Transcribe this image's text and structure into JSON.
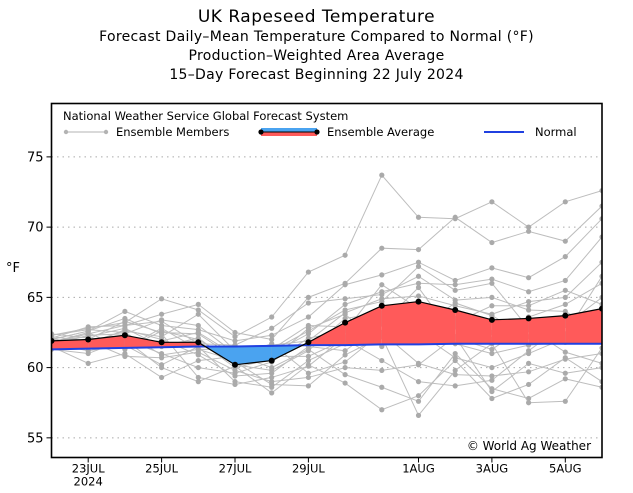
{
  "chart_data": {
    "type": "line",
    "title": "UK Rapeseed Temperature",
    "subtitles": [
      "Forecast Daily–Mean Temperature Compared to Normal (°F)",
      "Production–Weighted Area Average",
      "15–Day Forecast Beginning 22 July 2024"
    ],
    "xlabel": "",
    "ylabel": "°F",
    "ylim": [
      53.6,
      78.8
    ],
    "yticks": [
      55,
      60,
      65,
      70,
      75
    ],
    "grid": "horizontal-dotted",
    "x": [
      "22JUL",
      "23JUL",
      "24JUL",
      "25JUL",
      "26JUL",
      "27JUL",
      "28JUL",
      "29JUL",
      "30JUL",
      "31JUL",
      "1AUG",
      "2AUG",
      "3AUG",
      "4AUG",
      "5AUG",
      "6AUG"
    ],
    "xticks": [
      {
        "index": 1,
        "label": "23JUL",
        "sublabel": "2024"
      },
      {
        "index": 3,
        "label": "25JUL",
        "sublabel": ""
      },
      {
        "index": 5,
        "label": "27JUL",
        "sublabel": ""
      },
      {
        "index": 7,
        "label": "29JUL",
        "sublabel": ""
      },
      {
        "index": 10,
        "label": "1AUG",
        "sublabel": ""
      },
      {
        "index": 12,
        "label": "3AUG",
        "sublabel": ""
      },
      {
        "index": 14,
        "label": "5AUG",
        "sublabel": ""
      }
    ],
    "legend": {
      "header": "National Weather Service Global Forecast System",
      "position": "top",
      "entries": [
        {
          "name": "Ensemble Members",
          "color": "#b3b3b3"
        },
        {
          "name": "Ensemble Average",
          "color": "#000000",
          "above_color": "#ff5a5a",
          "below_color": "#4aa3f0"
        },
        {
          "name": "Normal",
          "color": "#2040e0"
        }
      ]
    },
    "annotation": "© World Ag Weather",
    "series": [
      {
        "name": "Ensemble Average",
        "values": [
          61.9,
          62.0,
          62.3,
          61.8,
          61.8,
          60.2,
          60.5,
          61.8,
          63.2,
          64.4,
          64.7,
          64.1,
          63.4,
          63.5,
          63.7,
          64.2
        ]
      },
      {
        "name": "Normal",
        "values": [
          61.3,
          61.35,
          61.4,
          61.45,
          61.5,
          61.5,
          61.55,
          61.6,
          61.6,
          61.65,
          61.65,
          61.7,
          61.7,
          61.7,
          61.7,
          61.7
        ]
      }
    ],
    "members": [
      [
        62.3,
        62.8,
        63.2,
        64.9,
        64.1,
        62.2,
        63.6,
        66.8,
        68.0,
        73.7,
        70.7,
        70.6,
        71.8,
        70.0,
        71.8,
        72.6
      ],
      [
        61.8,
        62.4,
        63.0,
        63.8,
        64.5,
        62.5,
        62.0,
        65.0,
        66.0,
        68.5,
        68.4,
        70.7,
        68.9,
        69.7,
        69.0,
        71.5
      ],
      [
        62.0,
        62.6,
        64.0,
        63.0,
        62.7,
        61.9,
        62.3,
        63.6,
        65.9,
        66.6,
        67.5,
        66.2,
        67.1,
        66.4,
        67.9,
        70.6
      ],
      [
        61.6,
        61.8,
        62.6,
        62.2,
        63.8,
        61.2,
        61.0,
        62.4,
        64.5,
        65.4,
        66.0,
        65.9,
        66.3,
        65.4,
        66.2,
        69.3
      ],
      [
        61.4,
        62.0,
        61.4,
        62.8,
        61.3,
        60.5,
        61.6,
        61.9,
        63.9,
        64.9,
        65.1,
        64.4,
        63.8,
        64.7,
        65.0,
        67.5
      ],
      [
        62.1,
        61.5,
        62.0,
        61.0,
        60.0,
        59.6,
        60.4,
        62.1,
        62.6,
        65.9,
        64.2,
        62.9,
        62.0,
        63.6,
        64.5,
        66.0
      ],
      [
        61.9,
        62.2,
        62.8,
        61.5,
        62.1,
        60.2,
        59.8,
        61.2,
        63.5,
        63.9,
        63.0,
        63.5,
        62.5,
        62.7,
        63.0,
        65.0
      ],
      [
        61.7,
        61.2,
        61.6,
        60.2,
        61.5,
        59.0,
        58.6,
        60.5,
        61.7,
        63.3,
        61.8,
        61.7,
        61.0,
        61.6,
        61.8,
        63.7
      ],
      [
        62.0,
        62.6,
        63.5,
        62.4,
        59.3,
        58.8,
        59.3,
        60.1,
        62.2,
        64.3,
        62.5,
        60.7,
        60.0,
        61.0,
        62.1,
        62.2
      ],
      [
        61.5,
        60.3,
        61.0,
        59.3,
        60.5,
        60.8,
        61.7,
        59.6,
        60.4,
        62.5,
        60.3,
        59.5,
        59.4,
        59.7,
        60.6,
        61.0
      ],
      [
        62.2,
        61.9,
        60.8,
        60.7,
        61.1,
        59.8,
        59.0,
        59.3,
        60.0,
        59.8,
        60.2,
        62.2,
        58.3,
        60.3,
        59.6,
        60.0
      ],
      [
        61.3,
        61.0,
        62.0,
        60.0,
        59.0,
        60.1,
        58.2,
        60.2,
        58.9,
        57.0,
        58.0,
        60.5,
        57.8,
        58.8,
        60.7,
        59.0
      ],
      [
        62.4,
        62.1,
        61.8,
        61.9,
        62.5,
        60.9,
        60.0,
        61.3,
        59.5,
        58.6,
        57.6,
        61.0,
        58.5,
        57.8,
        59.2,
        58.6
      ],
      [
        61.8,
        62.5,
        61.3,
        62.6,
        62.0,
        60.4,
        58.8,
        58.7,
        60.9,
        62.2,
        56.6,
        59.8,
        61.7,
        57.5,
        57.6,
        61.4
      ],
      [
        62.1,
        62.9,
        63.0,
        63.3,
        61.7,
        61.6,
        62.8,
        64.6,
        64.9,
        65.2,
        66.5,
        64.8,
        65.0,
        64.1,
        64.0,
        62.5
      ],
      [
        61.6,
        62.3,
        62.4,
        63.4,
        63.0,
        61.0,
        61.3,
        63.0,
        62.9,
        63.6,
        64.3,
        63.2,
        64.4,
        64.4,
        65.5,
        64.5
      ],
      [
        61.9,
        61.7,
        62.2,
        61.7,
        61.9,
        60.0,
        60.6,
        62.8,
        63.8,
        61.5,
        62.8,
        64.6,
        63.7,
        62.2,
        63.4,
        63.2
      ],
      [
        62.0,
        61.6,
        62.7,
        62.0,
        60.9,
        59.4,
        59.6,
        61.5,
        61.2,
        63.1,
        65.7,
        62.1,
        61.3,
        63.0,
        62.4,
        66.5
      ],
      [
        61.7,
        62.0,
        63.3,
        62.5,
        62.4,
        60.7,
        61.2,
        62.6,
        64.1,
        64.7,
        67.2,
        65.5,
        66.0,
        62.8,
        61.1,
        60.3
      ],
      [
        62.3,
        62.7,
        62.5,
        60.9,
        61.3,
        61.3,
        60.8,
        60.8,
        62.0,
        60.5,
        59.0,
        58.7,
        59.1,
        61.2,
        63.1,
        63.9
      ]
    ]
  }
}
